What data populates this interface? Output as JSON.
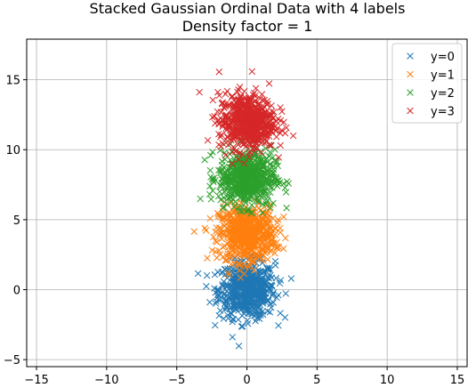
{
  "chart_data": {
    "type": "scatter",
    "title": "Stacked Gaussian Ordinal Data with 4 labels",
    "subtitle": "Density factor = 1",
    "xlabel": "",
    "ylabel": "",
    "xlim": [
      -15.7,
      15.7
    ],
    "ylim": [
      -5.5,
      17.9
    ],
    "x_ticks": [
      -15,
      -10,
      -5,
      0,
      5,
      10,
      15
    ],
    "y_ticks": [
      -5,
      0,
      5,
      10,
      15
    ],
    "x_tick_labels": [
      "−15",
      "−10",
      "−5",
      "0",
      "5",
      "10",
      "15"
    ],
    "y_tick_labels": [
      "−5",
      "0",
      "5",
      "10",
      "15"
    ],
    "grid": true,
    "marker": "x",
    "legend_position": "top-right",
    "series": [
      {
        "name": "y=0",
        "color": "#1f77b4",
        "center": [
          0,
          0
        ],
        "std": [
          1.0,
          1.0
        ],
        "samples": 600
      },
      {
        "name": "y=1",
        "color": "#ff7f0e",
        "center": [
          0,
          4
        ],
        "std": [
          1.0,
          1.0
        ],
        "samples": 600
      },
      {
        "name": "y=2",
        "color": "#2ca02c",
        "center": [
          0,
          8
        ],
        "std": [
          1.0,
          1.0
        ],
        "samples": 600
      },
      {
        "name": "y=3",
        "color": "#d62728",
        "center": [
          0,
          12
        ],
        "std": [
          1.0,
          1.0
        ],
        "samples": 600
      }
    ]
  }
}
